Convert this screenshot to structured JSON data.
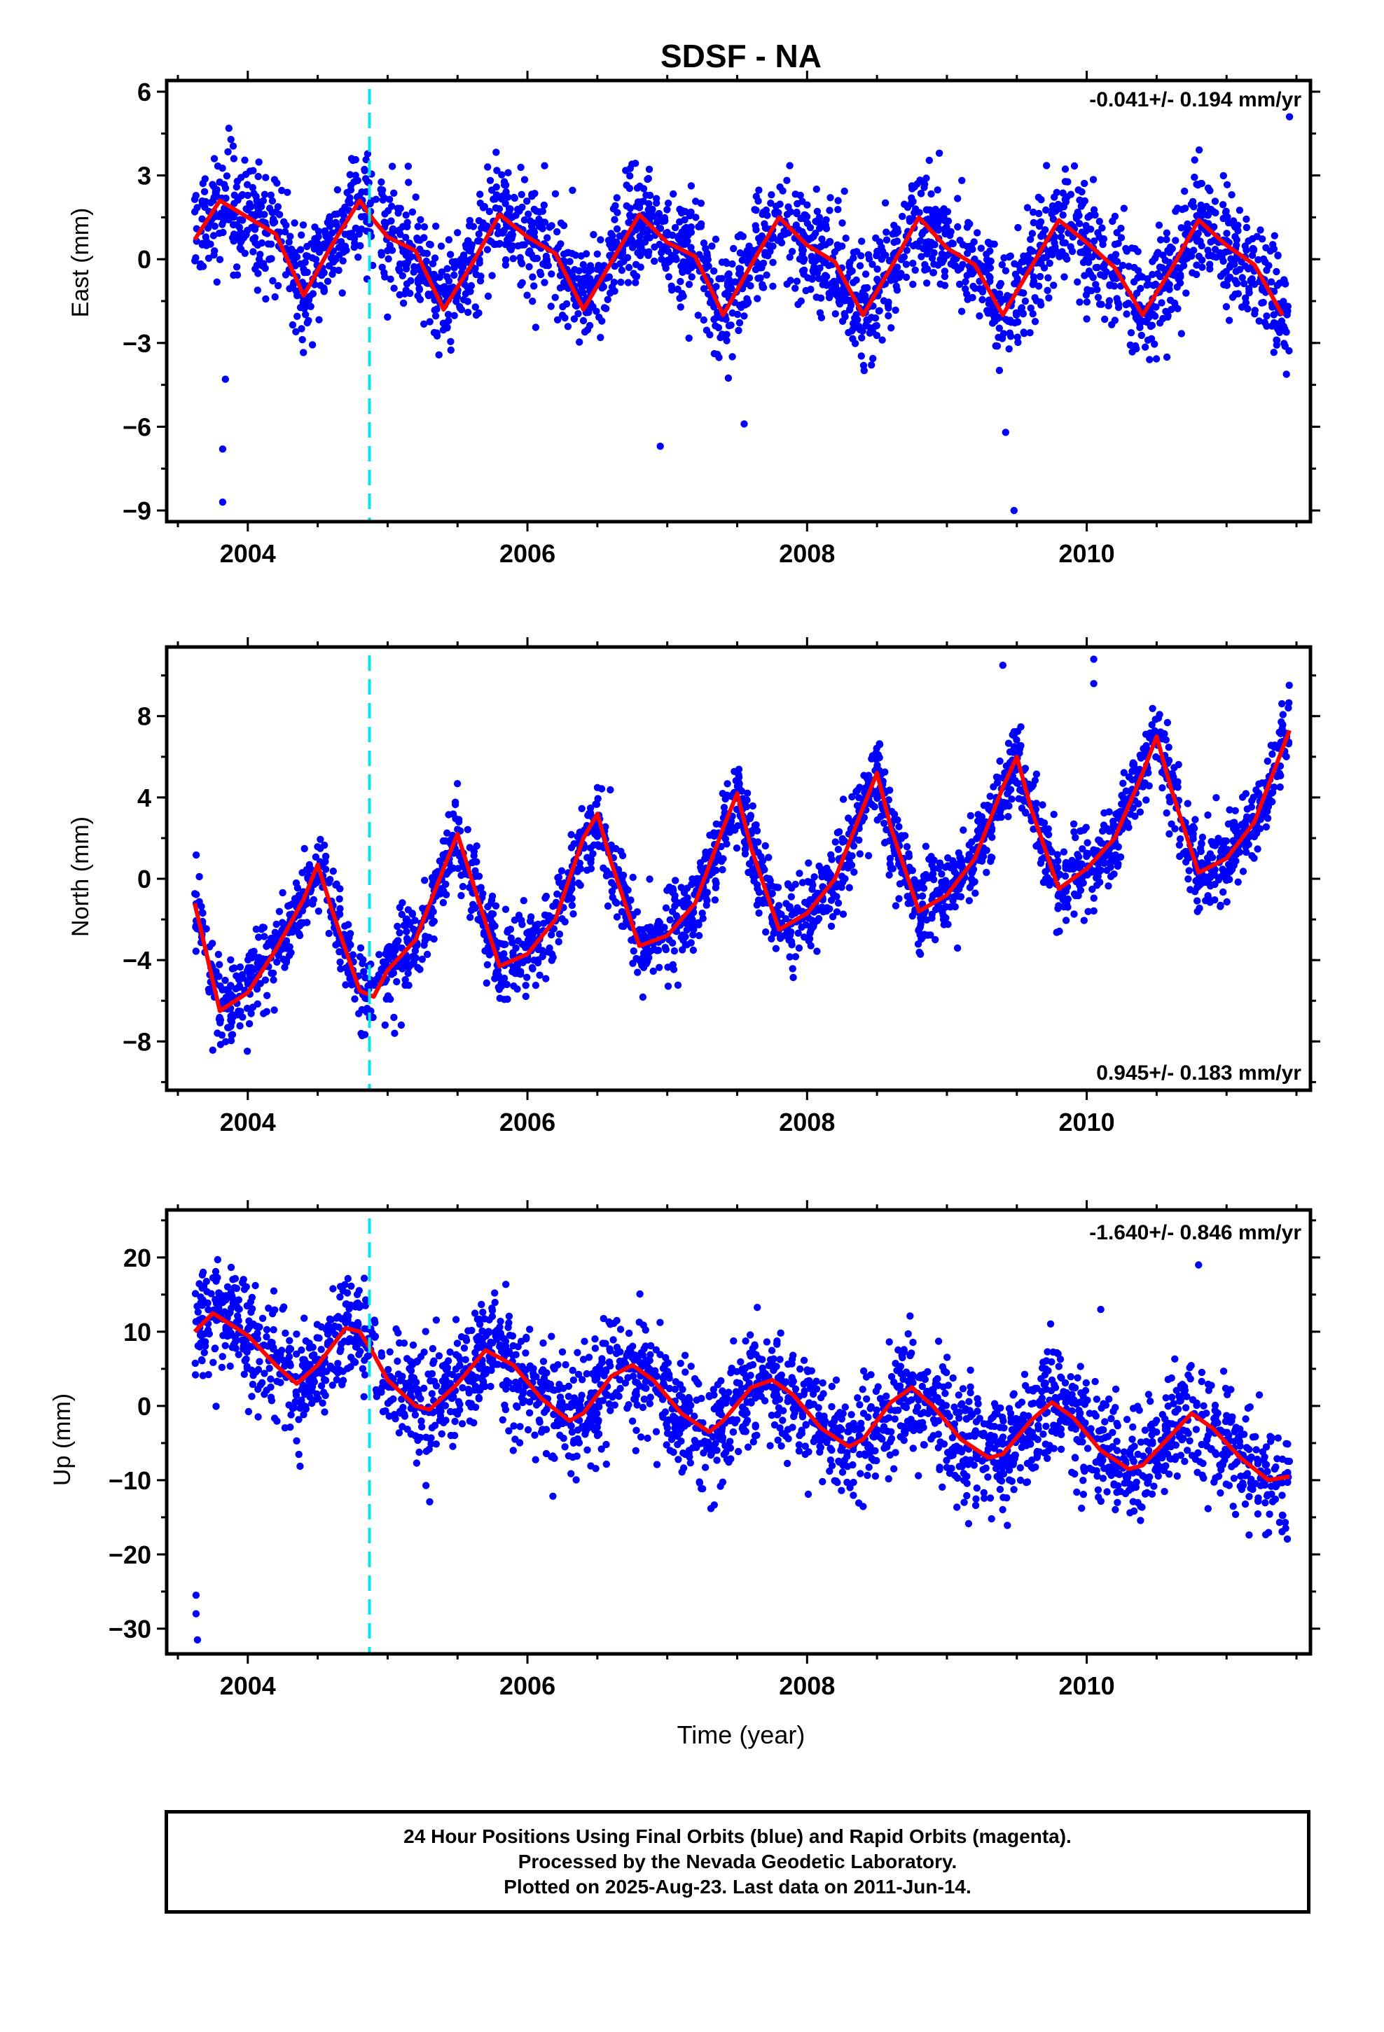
{
  "title": "SDSF - NA",
  "footer": {
    "line1": "24 Hour Positions Using Final Orbits (blue) and Rapid Orbits (magenta).",
    "line2": "Processed by the Nevada Geodetic Laboratory.",
    "line3": "Plotted on 2025-Aug-23. Last data on 2011-Jun-14."
  },
  "colors": {
    "points": "#0000ff",
    "model": "#ff0000",
    "step": "#00e5ee",
    "axis": "#000000"
  },
  "chart_data": [
    {
      "type": "scatter",
      "component": "east",
      "ylabel": "East (mm)",
      "xlabel": "",
      "rate": "-0.041+/- 0.194 mm/yr",
      "rate_position": "top-right",
      "xlim": [
        2003.42,
        2011.6
      ],
      "ylim": [
        -9.4,
        6.4
      ],
      "xticks": [
        2004,
        2006,
        2008,
        2010
      ],
      "yticks": [
        -9,
        -6,
        -3,
        0,
        3,
        6
      ],
      "yticklabels": [
        "−9",
        "−6",
        "−3",
        "0",
        "3",
        "6"
      ],
      "step_epoch": 2004.87,
      "model_curve": {
        "x": [
          2003.62,
          2003.8,
          2004.0,
          2004.2,
          2004.4,
          2004.6,
          2004.8,
          2004.9,
          2005.0,
          2005.2,
          2005.4,
          2005.6,
          2005.8,
          2006.0,
          2006.2,
          2006.4,
          2006.6,
          2006.8,
          2007.0,
          2007.2,
          2007.4,
          2007.6,
          2007.8,
          2008.0,
          2008.2,
          2008.4,
          2008.6,
          2008.8,
          2009.0,
          2009.2,
          2009.4,
          2009.6,
          2009.8,
          2010.0,
          2010.2,
          2010.4,
          2010.6,
          2010.8,
          2011.0,
          2011.2,
          2011.4
        ],
        "y": [
          0.7,
          2.1,
          1.5,
          0.9,
          -1.3,
          0.5,
          2.1,
          1.4,
          0.8,
          0.3,
          -1.8,
          -0.2,
          1.6,
          0.8,
          0.2,
          -1.8,
          -0.1,
          1.6,
          0.6,
          0.1,
          -2.0,
          -0.2,
          1.5,
          0.5,
          -0.1,
          -2.0,
          -0.3,
          1.5,
          0.4,
          -0.2,
          -2.0,
          -0.3,
          1.4,
          0.6,
          -0.3,
          -2.0,
          -0.4,
          1.4,
          0.5,
          -0.2,
          -2.0
        ]
      }
    },
    {
      "type": "scatter",
      "component": "north",
      "ylabel": "North (mm)",
      "xlabel": "",
      "rate": "0.945+/- 0.183 mm/yr",
      "rate_position": "bottom-right",
      "xlim": [
        2003.42,
        2011.6
      ],
      "ylim": [
        -10.4,
        11.4
      ],
      "xticks": [
        2004,
        2006,
        2008,
        2010
      ],
      "yticks": [
        -8,
        -4,
        0,
        4,
        8
      ],
      "yticklabels": [
        "−8",
        "−4",
        "0",
        "4",
        "8"
      ],
      "step_epoch": 2004.87,
      "model_curve": {
        "x": [
          2003.62,
          2003.8,
          2004.0,
          2004.2,
          2004.4,
          2004.5,
          2004.6,
          2004.8,
          2004.9,
          2005.0,
          2005.2,
          2005.4,
          2005.5,
          2005.6,
          2005.8,
          2006.0,
          2006.2,
          2006.4,
          2006.5,
          2006.6,
          2006.8,
          2007.0,
          2007.2,
          2007.4,
          2007.5,
          2007.6,
          2007.8,
          2008.0,
          2008.2,
          2008.4,
          2008.5,
          2008.6,
          2008.8,
          2009.0,
          2009.2,
          2009.4,
          2009.5,
          2009.6,
          2009.8,
          2010.0,
          2010.2,
          2010.4,
          2010.5,
          2010.6,
          2010.8,
          2011.0,
          2011.2,
          2011.45
        ],
        "y": [
          -1.2,
          -6.5,
          -5.6,
          -3.5,
          -1.0,
          0.7,
          -1.5,
          -5.5,
          -5.8,
          -4.5,
          -3.0,
          0.5,
          2.2,
          0.0,
          -4.3,
          -3.7,
          -2.0,
          2.0,
          3.2,
          0.8,
          -3.3,
          -2.8,
          -1.2,
          2.5,
          4.2,
          1.5,
          -2.5,
          -1.7,
          0.0,
          3.5,
          5.2,
          2.5,
          -1.6,
          -0.8,
          1.0,
          4.5,
          6.0,
          3.5,
          -0.5,
          0.5,
          2.0,
          5.2,
          7.0,
          4.5,
          0.3,
          1.0,
          2.8,
          7.3
        ]
      }
    },
    {
      "type": "scatter",
      "component": "up",
      "ylabel": "Up (mm)",
      "xlabel": "Time (year)",
      "rate": "-1.640+/- 0.846 mm/yr",
      "rate_position": "top-right",
      "xlim": [
        2003.42,
        2011.6
      ],
      "ylim": [
        -33.4,
        26.4
      ],
      "xticks": [
        2004,
        2006,
        2008,
        2010
      ],
      "yticks": [
        -30,
        -20,
        -10,
        0,
        10,
        20
      ],
      "yticklabels": [
        "−30",
        "−20",
        "−10",
        "0",
        "10",
        "20"
      ],
      "step_epoch": 2004.87,
      "model_curve": {
        "x": [
          2003.62,
          2003.75,
          2004.0,
          2004.2,
          2004.35,
          2004.5,
          2004.7,
          2004.8,
          2004.9,
          2005.0,
          2005.2,
          2005.3,
          2005.5,
          2005.7,
          2005.9,
          2006.1,
          2006.3,
          2006.4,
          2006.6,
          2006.75,
          2006.9,
          2007.1,
          2007.3,
          2007.4,
          2007.6,
          2007.75,
          2007.9,
          2008.1,
          2008.3,
          2008.4,
          2008.6,
          2008.75,
          2008.9,
          2009.1,
          2009.3,
          2009.4,
          2009.6,
          2009.75,
          2009.9,
          2010.1,
          2010.3,
          2010.4,
          2010.6,
          2010.75,
          2010.9,
          2011.1,
          2011.3,
          2011.45
        ],
        "y": [
          10.0,
          12.5,
          9.5,
          5.5,
          3.0,
          5.5,
          10.5,
          10.0,
          7.0,
          3.5,
          0.0,
          -0.5,
          3.0,
          7.5,
          5.5,
          1.0,
          -2.0,
          -1.0,
          4.0,
          5.5,
          3.5,
          -1.0,
          -3.5,
          -2.0,
          2.5,
          3.5,
          1.5,
          -3.0,
          -5.5,
          -4.5,
          0.5,
          2.5,
          0.0,
          -4.5,
          -7.0,
          -6.5,
          -2.0,
          0.5,
          -1.5,
          -6.0,
          -8.5,
          -8.0,
          -4.0,
          -1.0,
          -3.0,
          -7.0,
          -10.0,
          -9.5
        ]
      }
    }
  ]
}
